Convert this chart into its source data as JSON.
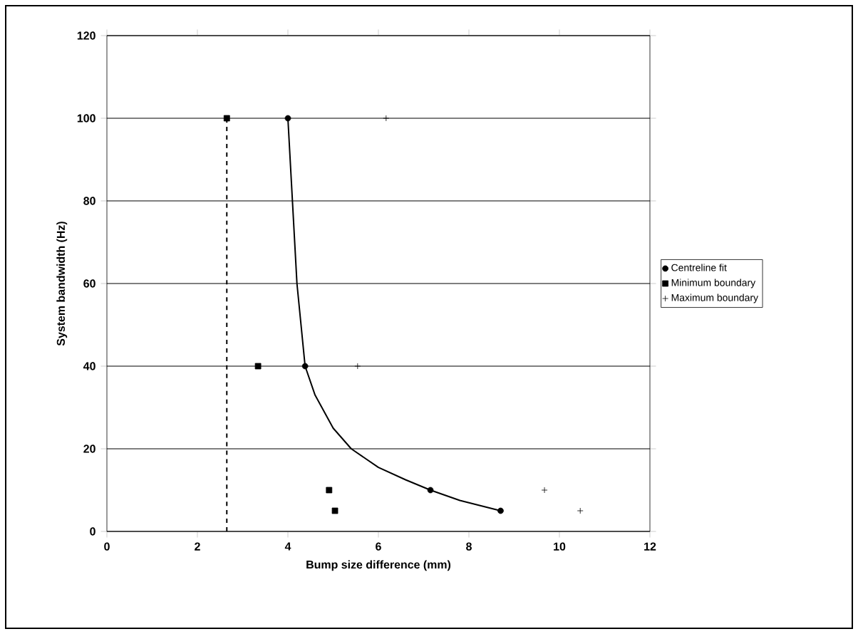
{
  "chart_data": {
    "type": "scatter",
    "xlabel": "Bump size difference (mm)",
    "ylabel": "System bandwidth (Hz)",
    "xlim": [
      0,
      12
    ],
    "ylim": [
      0,
      120
    ],
    "xticks": [
      0,
      2,
      4,
      6,
      8,
      10,
      12
    ],
    "yticks": [
      0,
      20,
      40,
      60,
      80,
      100,
      120
    ],
    "grid": "y",
    "legend": "right",
    "series": [
      {
        "name": "Centreline fit",
        "color": "#000000",
        "marker": "circle",
        "x": [
          4.0,
          4.38,
          7.15,
          8.7
        ],
        "values": [
          100,
          40,
          10,
          5
        ]
      },
      {
        "name": "Minimum boundary",
        "color": "#000000",
        "marker": "square",
        "x": [
          2.65,
          3.34,
          4.91,
          5.04
        ],
        "values": [
          100,
          40,
          10,
          5
        ]
      },
      {
        "name": "Maximum boundary",
        "color": "#000000",
        "marker": "cross",
        "x": [
          6.17,
          5.54,
          9.67,
          10.46
        ],
        "values": [
          100,
          40,
          10,
          5
        ]
      },
      {
        "type": "line",
        "color": "#000000",
        "marker": "none",
        "line_style": "solid",
        "x": [
          4.0,
          4.1,
          4.2,
          4.38,
          4.6,
          5.0,
          5.4,
          6.0,
          6.6,
          7.15,
          7.8,
          8.7
        ],
        "values": [
          100,
          80,
          60,
          40,
          33,
          25,
          20,
          15.5,
          12.5,
          10,
          7.5,
          5
        ]
      },
      {
        "type": "line",
        "color": "#000000",
        "marker": "none",
        "line_style": "dashed",
        "x": [
          2.65,
          2.65
        ],
        "values": [
          0,
          100
        ]
      }
    ]
  }
}
